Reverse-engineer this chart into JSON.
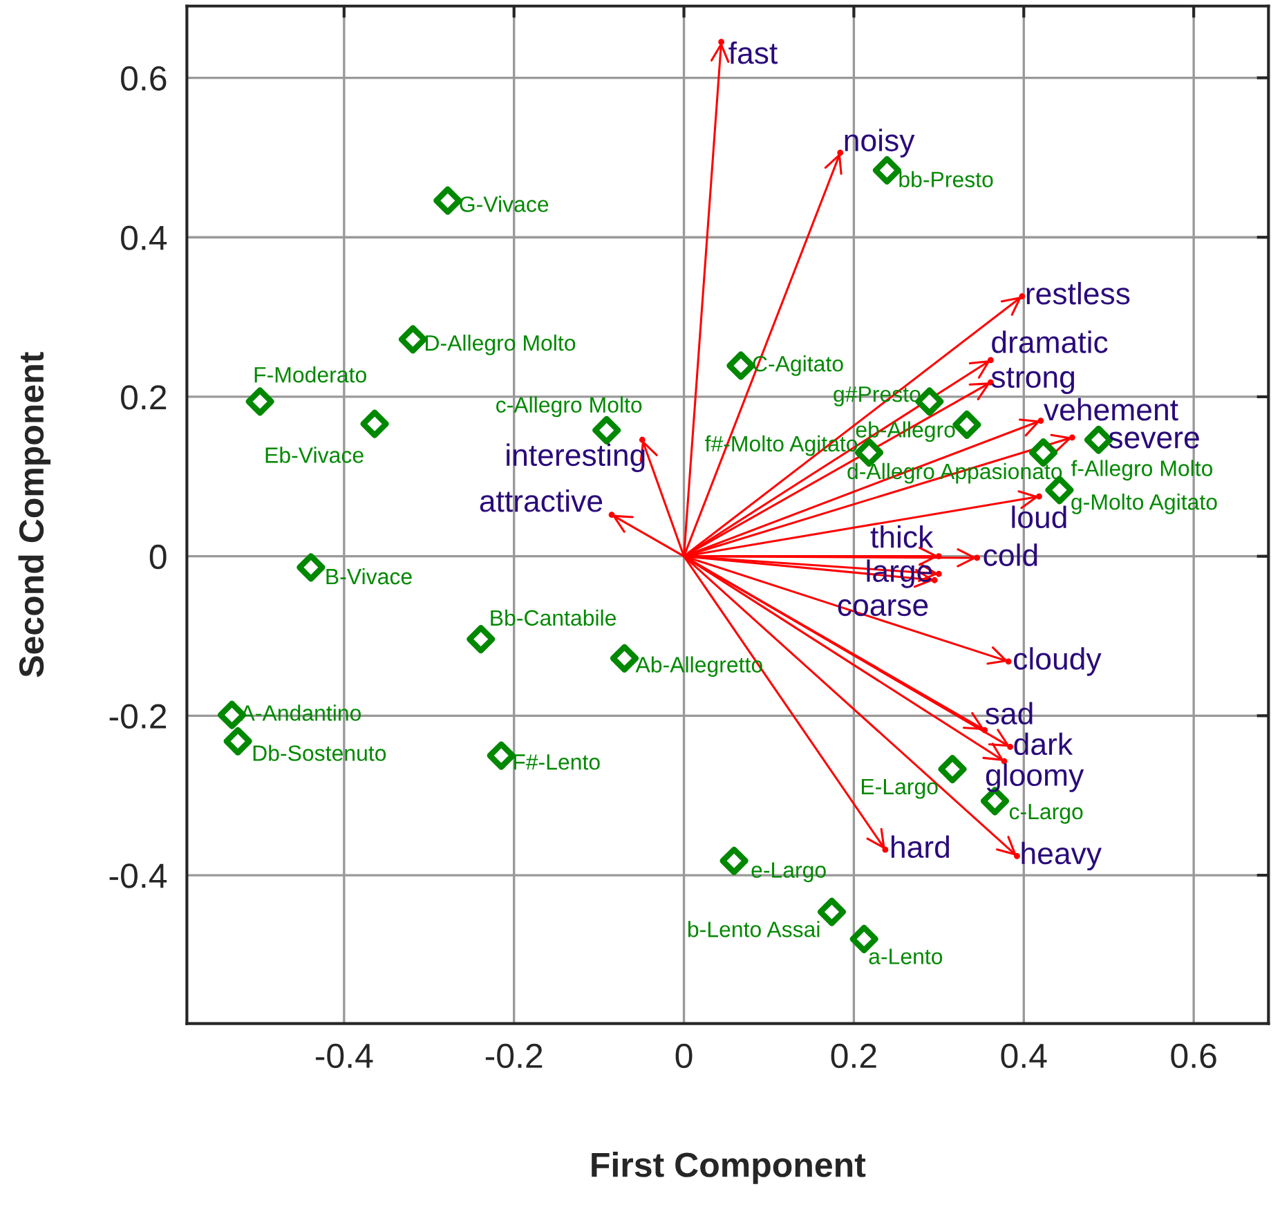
{
  "chart_data": {
    "type": "scatter",
    "xlabel": "First Component",
    "ylabel": "Second Component",
    "xlim": [
      -0.585,
      0.688
    ],
    "ylim": [
      -0.586,
      0.69
    ],
    "xticks": [
      -0.4,
      -0.2,
      0,
      0.2,
      0.4,
      0.6
    ],
    "yticks": [
      -0.4,
      -0.2,
      0,
      0.2,
      0.4,
      0.6
    ],
    "grid": true,
    "marker": "diamond",
    "series": [
      {
        "type": "scatter",
        "color": "#008800",
        "x": [
          -0.278,
          -0.319,
          -0.499,
          -0.364,
          -0.091,
          -0.439,
          -0.239,
          -0.07,
          -0.532,
          -0.525,
          -0.215,
          0.067,
          0.239,
          0.218,
          0.289,
          0.333,
          0.423,
          0.488,
          0.442,
          0.316,
          0.366,
          0.059,
          0.174,
          0.212
        ],
        "values": [
          0.446,
          0.272,
          0.194,
          0.166,
          0.158,
          -0.014,
          -0.104,
          -0.128,
          -0.199,
          -0.232,
          -0.25,
          0.239,
          0.484,
          0.13,
          0.194,
          0.165,
          0.13,
          0.146,
          0.083,
          -0.267,
          -0.307,
          -0.382,
          -0.446,
          -0.48
        ],
        "value_labels": [
          "G-Vivace",
          "D-Allegro Molto",
          "F-Moderato",
          "Eb-Vivace",
          "c-Allegro Molto",
          "B-Vivace",
          "Bb-Cantabile",
          "Ab-Allegretto",
          "A-Andantino",
          "Db-Sostenuto",
          "F#-Lento",
          "C-Agitato",
          "bb-Presto",
          "f#-Molto Agitato",
          "g#Presto",
          "eb-Allegro",
          "d-Allegro Appasionato",
          "f-Allegro Molto",
          "g-Molto Agitato",
          "E-Largo",
          "c-Largo",
          "e-Largo",
          "b-Lento Assai",
          "a-Lento"
        ]
      },
      {
        "marker": "circle",
        "color": "#ff0000",
        "x": [
          0.044,
          0.184,
          0.398,
          0.361,
          0.361,
          0.42,
          0.457,
          0.418,
          0.3,
          0.345,
          0.3,
          0.295,
          0.382,
          0.354,
          0.384,
          0.377,
          0.392,
          0.237,
          -0.049,
          -0.085
        ],
        "values": [
          0.645,
          0.506,
          0.326,
          0.246,
          0.218,
          0.17,
          0.149,
          0.075,
          0.0,
          -0.002,
          -0.022,
          -0.03,
          -0.132,
          -0.218,
          -0.239,
          -0.257,
          -0.376,
          -0.368,
          0.146,
          0.052
        ],
        "value_labels": [
          "fast",
          "noisy",
          "restless",
          "dramatic",
          "strong",
          "vehement",
          "severe",
          "loud",
          "thick",
          "cold",
          "large",
          "coarse",
          "cloudy",
          "sad",
          "dark",
          "gloomy",
          "heavy",
          "hard",
          "interesting",
          "attractive"
        ]
      }
    ]
  }
}
